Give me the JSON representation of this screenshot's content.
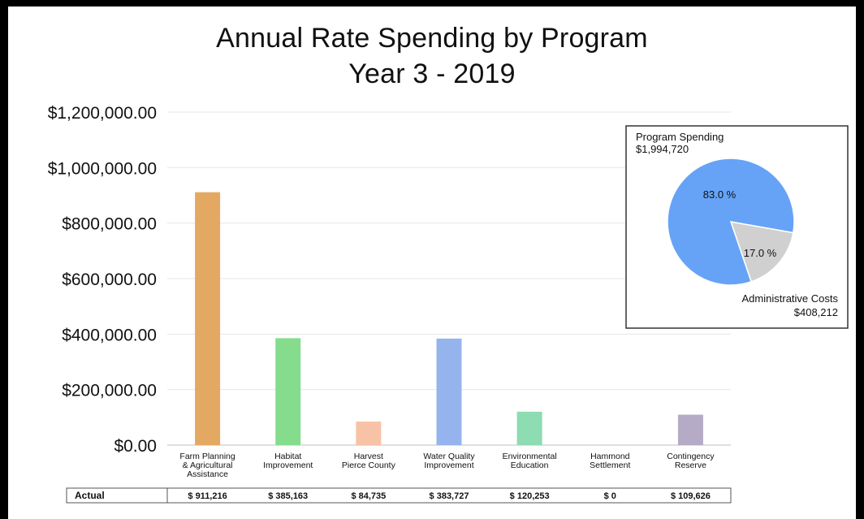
{
  "chart_data": {
    "type": "bar",
    "title": [
      "Annual Rate Spending by Program",
      "Year 3 - 2019"
    ],
    "categories": [
      [
        "Farm Planning",
        "& Agricultural",
        "Assistance"
      ],
      [
        "Habitat",
        "Improvement"
      ],
      [
        "Harvest",
        "Pierce County"
      ],
      [
        "Water Quality",
        "Improvement"
      ],
      [
        "Environmental",
        "Education"
      ],
      [
        "Hammond",
        "Settlement"
      ],
      [
        "Contingency",
        "Reserve"
      ]
    ],
    "values": [
      911216,
      385163,
      84735,
      383727,
      120253,
      0,
      109626
    ],
    "colors": [
      "#E3A962",
      "#84DC8C",
      "#F8C2A6",
      "#95B4EE",
      "#8EDCB1",
      "#cccccc",
      "#B5ABC6"
    ],
    "ylim": [
      0,
      1200000
    ],
    "yticks": [
      0,
      200000,
      400000,
      600000,
      800000,
      1000000,
      1200000
    ],
    "ytick_labels": [
      "$0.00",
      "$200,000.00",
      "$400,000.00",
      "$600,000.00",
      "$800,000.00",
      "$1,000,000.00",
      "$1,200,000.00"
    ],
    "grid": true,
    "legend": "none",
    "table": {
      "row_label": "Actual",
      "cells": [
        "$ 911,216",
        "$ 385,163",
        "$ 84,735",
        "$ 383,727",
        "$ 120,253",
        "$ 0",
        "$ 109,626"
      ]
    },
    "inset_pie": {
      "type": "pie",
      "slices": [
        {
          "name": "Program Spending",
          "amount": "$1,994,720",
          "percent": 83.0,
          "label": "83.0 %",
          "color": "#66A3F7"
        },
        {
          "name": "Administrative Costs",
          "amount": "$408,212",
          "percent": 17.0,
          "label": "17.0 %",
          "color": "#D0D0D0"
        }
      ]
    }
  }
}
